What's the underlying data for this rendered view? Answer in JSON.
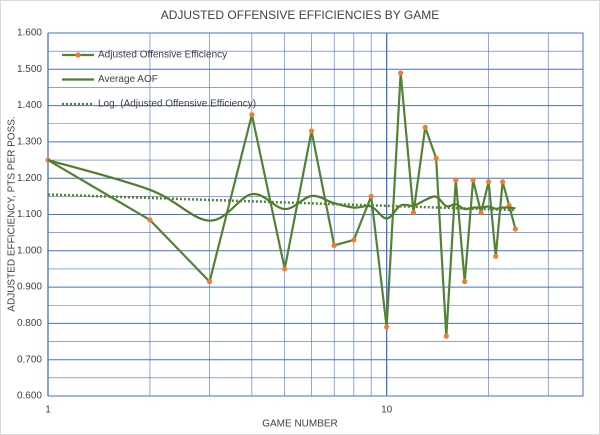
{
  "chart_data": {
    "type": "line",
    "title": "ADJUSTED OFFENSIVE EFFICIENCIES BY GAME",
    "x_label": "GAME NUMBER",
    "y_label": "ADJUSTED EFFICIENCY, PTS PER POSS.",
    "x_scale": "log",
    "grid": true,
    "legend": "top-left",
    "xlim": [
      1,
      38
    ],
    "xticks": [
      1,
      10
    ],
    "x_minor_ticks": [
      2,
      3,
      4,
      5,
      6,
      7,
      8,
      9,
      20,
      30
    ],
    "ylim": [
      0.6,
      1.6
    ],
    "yticks": [
      {
        "value": 0.6,
        "label": "0.600"
      },
      {
        "value": 0.7,
        "label": "0.700"
      },
      {
        "value": 0.8,
        "label": "0.800"
      },
      {
        "value": 0.9,
        "label": "0.900"
      },
      {
        "value": 1.0,
        "label": "1.000"
      },
      {
        "value": 1.1,
        "label": "1.100"
      },
      {
        "value": 1.2,
        "label": "1.200"
      },
      {
        "value": 1.3,
        "label": "1.300"
      },
      {
        "value": 1.4,
        "label": "1.400"
      },
      {
        "value": 1.5,
        "label": "1.500"
      },
      {
        "value": 1.6,
        "label": "1.600"
      }
    ],
    "y_minor_ticks": [
      0.65,
      0.75,
      0.85,
      0.95,
      1.05,
      1.15,
      1.25,
      1.35,
      1.45,
      1.55
    ],
    "x": [
      1,
      2,
      3,
      4,
      5,
      6,
      7,
      8,
      9,
      10,
      11,
      12,
      13,
      14,
      15,
      16,
      17,
      18,
      19,
      20,
      21,
      22,
      23,
      24
    ],
    "series": [
      {
        "name": "Adjusted Offensive Efficiency",
        "color": "#548235",
        "marker_color": "#ED7D31",
        "style": "solid",
        "markers": true,
        "values": [
          1.25,
          1.085,
          0.915,
          1.375,
          0.95,
          1.33,
          1.015,
          1.03,
          1.15,
          0.79,
          1.49,
          1.105,
          1.34,
          1.255,
          0.765,
          1.195,
          0.915,
          1.195,
          1.105,
          1.19,
          0.985,
          1.19,
          1.125,
          1.06
        ]
      },
      {
        "name": "Average AOF",
        "color": "#4f7d2a",
        "style": "smooth",
        "values": [
          1.25,
          1.168,
          1.083,
          1.156,
          1.115,
          1.151,
          1.131,
          1.119,
          1.122,
          1.089,
          1.125,
          1.124,
          1.14,
          1.149,
          1.123,
          1.128,
          1.115,
          1.119,
          1.119,
          1.122,
          1.116,
          1.119,
          1.119,
          1.117
        ]
      },
      {
        "name": "Log. (Adjusted Offensive Efficiency)",
        "color": "#548235",
        "style": "dotted",
        "x": [
          1,
          24
        ],
        "values": [
          1.155,
          1.112
        ]
      }
    ]
  }
}
